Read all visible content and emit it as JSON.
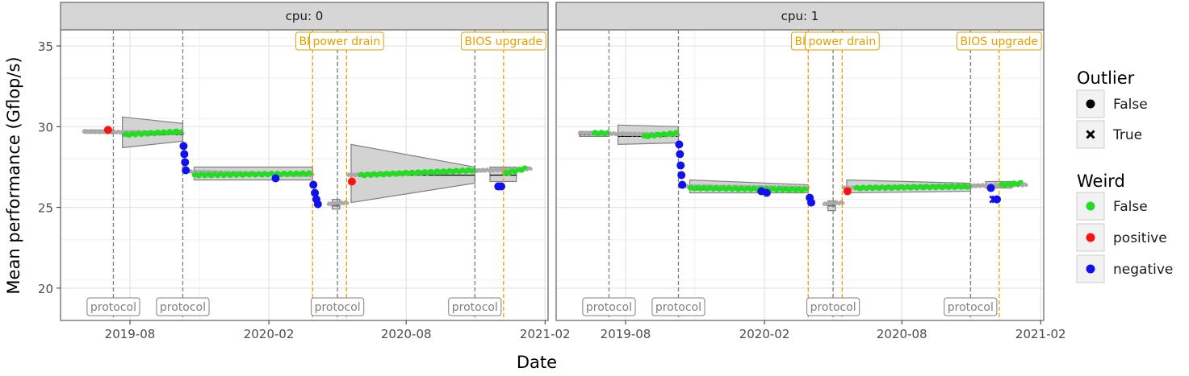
{
  "chart_data": {
    "type": "scatter",
    "xlabel": "Date",
    "ylabel": "Mean performance (Gflop/s)",
    "ylim": [
      18,
      36
    ],
    "yticks": [
      20,
      25,
      30,
      35
    ],
    "xlim": [
      "2019-05-01",
      "2021-02-05"
    ],
    "xticks": [
      "2019-08",
      "2020-02",
      "2020-08",
      "2021-02"
    ],
    "grid": true,
    "legend_placement": "right",
    "colors": {
      "normal": "#aaaaaa",
      "False": "#22dd22",
      "positive": "#ff1111",
      "negative": "#1111ee",
      "event_protocol": "#808080",
      "event_bios": "#e6a000",
      "ribbon_fill": "#d3d3d3",
      "ribbon_stroke": "#7f7f7f"
    },
    "legend": {
      "outlier": {
        "title": "Outlier",
        "entries": [
          {
            "label": "False",
            "marker": "circle"
          },
          {
            "label": "True",
            "marker": "cross"
          }
        ]
      },
      "weird": {
        "title": "Weird",
        "entries": [
          {
            "label": "False",
            "color": "#22dd22"
          },
          {
            "label": "positive",
            "color": "#ff1111"
          },
          {
            "label": "negative",
            "color": "#1111ee"
          }
        ]
      }
    },
    "panels": [
      {
        "strip": "cpu: 0",
        "events": [
          {
            "date": "2019-07-10",
            "label": "protocol",
            "kind": "protocol"
          },
          {
            "date": "2019-10-10",
            "label": "protocol",
            "kind": "protocol"
          },
          {
            "date": "2020-03-30",
            "label": "BIOS",
            "kind": "bios"
          },
          {
            "date": "2020-05-02",
            "label": "protocol",
            "kind": "protocol"
          },
          {
            "date": "2020-05-14",
            "label": "power drain",
            "kind": "bios"
          },
          {
            "date": "2020-10-31",
            "label": "protocol",
            "kind": "protocol"
          },
          {
            "date": "2020-12-08",
            "label": "BIOS upgrade",
            "kind": "bios"
          }
        ],
        "segments": [
          {
            "start": "2019-06-01",
            "end": "2019-07-10",
            "mean": 29.7,
            "lo0": 29.6,
            "hi0": 29.8,
            "lo1": 29.6,
            "hi1": 29.8
          },
          {
            "start": "2019-07-22",
            "end": "2019-10-10",
            "mean": 29.5,
            "lo0": 28.7,
            "hi0": 30.6,
            "lo1": 29.1,
            "hi1": 30.2
          },
          {
            "start": "2019-10-25",
            "end": "2020-03-30",
            "mean": 27.0,
            "lo0": 26.7,
            "hi0": 27.5,
            "lo1": 26.7,
            "hi1": 27.5
          },
          {
            "start": "2020-04-25",
            "end": "2020-05-05",
            "mean": 25.1,
            "lo0": 24.9,
            "hi0": 25.5,
            "lo1": 24.9,
            "hi1": 25.5
          },
          {
            "start": "2020-05-20",
            "end": "2020-10-31",
            "mean": 27.0,
            "lo0": 25.3,
            "hi0": 28.9,
            "lo1": 26.5,
            "hi1": 27.5
          },
          {
            "start": "2020-11-20",
            "end": "2020-12-25",
            "mean": 27.0,
            "lo0": 26.6,
            "hi0": 27.5,
            "lo1": 26.6,
            "hi1": 27.5
          }
        ],
        "gray_runs": [
          {
            "start": "2019-06-01",
            "end": "2019-10-10",
            "y0": 29.7,
            "y1": 29.6
          },
          {
            "start": "2019-10-20",
            "end": "2020-03-30",
            "y0": 27.2,
            "y1": 27.0
          },
          {
            "start": "2020-04-20",
            "end": "2020-05-15",
            "y0": 25.2,
            "y1": 25.3
          },
          {
            "start": "2020-05-16",
            "end": "2021-01-13",
            "y0": 27.0,
            "y1": 27.4
          }
        ],
        "weird_false_runs": [
          {
            "start": "2019-07-25",
            "end": "2019-10-08",
            "y0": 29.5,
            "y1": 29.7
          },
          {
            "start": "2019-10-25",
            "end": "2020-03-28",
            "y0": 27.0,
            "y1": 27.1
          },
          {
            "start": "2020-06-01",
            "end": "2020-10-30",
            "y0": 27.0,
            "y1": 27.3
          },
          {
            "start": "2020-12-09",
            "end": "2021-01-06",
            "y0": 27.1,
            "y1": 27.4
          }
        ],
        "positive_points": [
          {
            "date": "2019-07-03",
            "y": 29.8
          },
          {
            "date": "2020-05-21",
            "y": 26.6
          }
        ],
        "negative_points": [
          {
            "date": "2019-10-11",
            "y": 28.8
          },
          {
            "date": "2019-10-12",
            "y": 28.3
          },
          {
            "date": "2019-10-13",
            "y": 27.8
          },
          {
            "date": "2019-10-14",
            "y": 27.3
          },
          {
            "date": "2020-02-10",
            "y": 26.8
          },
          {
            "date": "2020-03-31",
            "y": 26.4
          },
          {
            "date": "2020-04-02",
            "y": 25.9
          },
          {
            "date": "2020-04-04",
            "y": 25.5
          },
          {
            "date": "2020-04-06",
            "y": 25.2
          },
          {
            "date": "2020-12-01",
            "y": 26.3
          },
          {
            "date": "2020-12-05",
            "y": 26.3
          }
        ],
        "outlier_points": []
      },
      {
        "strip": "cpu: 1",
        "events": [
          {
            "date": "2019-07-10",
            "label": "protocol",
            "kind": "protocol"
          },
          {
            "date": "2019-10-10",
            "label": "protocol",
            "kind": "protocol"
          },
          {
            "date": "2020-03-30",
            "label": "BIOS",
            "kind": "bios"
          },
          {
            "date": "2020-05-02",
            "label": "protocol",
            "kind": "protocol"
          },
          {
            "date": "2020-05-14",
            "label": "power drain",
            "kind": "bios"
          },
          {
            "date": "2020-10-31",
            "label": "protocol",
            "kind": "protocol"
          },
          {
            "date": "2020-12-08",
            "label": "BIOS upgrade",
            "kind": "bios"
          }
        ],
        "segments": [
          {
            "start": "2019-06-01",
            "end": "2019-07-10",
            "mean": 29.5,
            "lo0": 29.4,
            "hi0": 29.7,
            "lo1": 29.4,
            "hi1": 29.7
          },
          {
            "start": "2019-07-22",
            "end": "2019-10-10",
            "mean": 29.4,
            "lo0": 28.9,
            "hi0": 30.1,
            "lo1": 29.0,
            "hi1": 30.0
          },
          {
            "start": "2019-10-25",
            "end": "2020-03-30",
            "mean": 26.1,
            "lo0": 25.9,
            "hi0": 26.7,
            "lo1": 25.9,
            "hi1": 26.4
          },
          {
            "start": "2020-04-25",
            "end": "2020-05-05",
            "mean": 25.1,
            "lo0": 24.8,
            "hi0": 25.4,
            "lo1": 24.8,
            "hi1": 25.4
          },
          {
            "start": "2020-05-20",
            "end": "2020-10-31",
            "mean": 26.2,
            "lo0": 25.9,
            "hi0": 26.7,
            "lo1": 26.0,
            "hi1": 26.5
          },
          {
            "start": "2020-11-20",
            "end": "2020-12-25",
            "mean": 26.4,
            "lo0": 26.2,
            "hi0": 26.6,
            "lo1": 26.2,
            "hi1": 26.6
          }
        ],
        "gray_runs": [
          {
            "start": "2019-06-01",
            "end": "2019-10-10",
            "y0": 29.6,
            "y1": 29.5
          },
          {
            "start": "2019-10-20",
            "end": "2020-03-30",
            "y0": 26.3,
            "y1": 26.2
          },
          {
            "start": "2020-04-20",
            "end": "2020-05-15",
            "y0": 25.2,
            "y1": 25.3
          },
          {
            "start": "2020-05-16",
            "end": "2021-01-13",
            "y0": 26.2,
            "y1": 26.4
          }
        ],
        "weird_false_runs": [
          {
            "start": "2019-06-20",
            "end": "2019-07-08",
            "y0": 29.6,
            "y1": 29.6
          },
          {
            "start": "2019-08-25",
            "end": "2019-10-08",
            "y0": 29.4,
            "y1": 29.6
          },
          {
            "start": "2019-10-25",
            "end": "2020-03-28",
            "y0": 26.2,
            "y1": 26.1
          },
          {
            "start": "2020-06-01",
            "end": "2020-10-30",
            "y0": 26.2,
            "y1": 26.3
          },
          {
            "start": "2020-12-10",
            "end": "2021-01-06",
            "y0": 26.4,
            "y1": 26.5
          }
        ],
        "positive_points": [
          {
            "date": "2020-05-21",
            "y": 26.0
          }
        ],
        "negative_points": [
          {
            "date": "2019-10-11",
            "y": 28.9
          },
          {
            "date": "2019-10-12",
            "y": 28.3
          },
          {
            "date": "2019-10-13",
            "y": 27.6
          },
          {
            "date": "2019-10-14",
            "y": 27.0
          },
          {
            "date": "2019-10-15",
            "y": 26.4
          },
          {
            "date": "2020-01-28",
            "y": 26.0
          },
          {
            "date": "2020-02-04",
            "y": 25.9
          },
          {
            "date": "2020-04-01",
            "y": 25.6
          },
          {
            "date": "2020-04-03",
            "y": 25.3
          },
          {
            "date": "2020-11-27",
            "y": 26.2
          },
          {
            "date": "2020-12-05",
            "y": 25.5
          }
        ],
        "outlier_points": [
          {
            "date": "2020-11-30",
            "y": 25.5
          },
          {
            "date": "2020-12-03",
            "y": 25.5
          }
        ]
      }
    ]
  }
}
